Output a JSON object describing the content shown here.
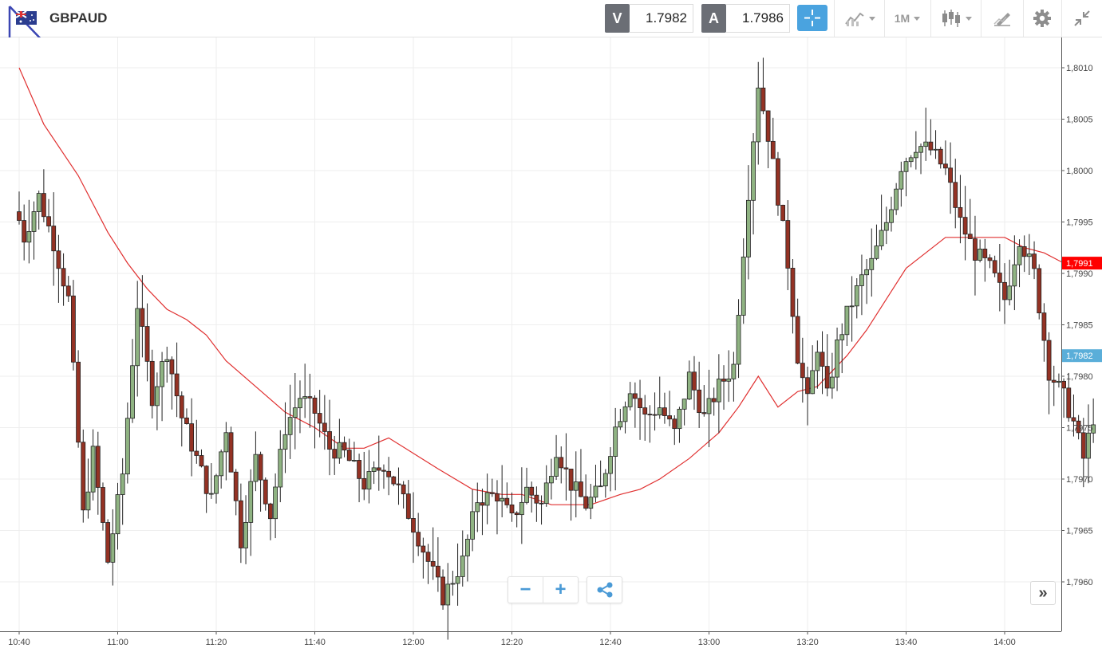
{
  "header": {
    "symbol": "GBPAUD",
    "sell_tag": "V",
    "sell_price": "1.7982",
    "buy_tag": "A",
    "buy_price": "1.7986",
    "timeframe": "1M"
  },
  "colors": {
    "accent": "#4aa3df",
    "candle_up": "#8fb382",
    "candle_down": "#943224",
    "moving_average": "#e03030",
    "ma_badge": "#ff0000",
    "price_badge": "#5aaed9"
  },
  "icons": [
    "logo-icon",
    "flag-icon",
    "crosshair-icon",
    "indicators-icon",
    "candlestick-icon",
    "draw-icon",
    "gear-icon",
    "collapse-icon",
    "zoom-out-icon",
    "zoom-in-icon",
    "share-icon",
    "scroll-forward-icon"
  ],
  "chart_data": {
    "type": "candlestick",
    "ylim": [
      1.7955,
      1.8013
    ],
    "y_ticks": [
      "1,8010",
      "1,8005",
      "1,8000",
      "1,7995",
      "1,7990",
      "1,7985",
      "1,7980",
      "1,7975",
      "1,7970",
      "1,7965",
      "1,7960"
    ],
    "y_tick_values": [
      1.801,
      1.8005,
      1.8,
      1.7995,
      1.799,
      1.7985,
      1.798,
      1.7975,
      1.797,
      1.7965,
      1.796
    ],
    "x_ticks": [
      "10:40",
      "11:00",
      "11:20",
      "11:40",
      "12:00",
      "12:20",
      "12:40",
      "13:00",
      "13:20",
      "13:40",
      "14:00"
    ],
    "x_tick_minutes": [
      640,
      660,
      680,
      700,
      720,
      740,
      760,
      780,
      800,
      820,
      840
    ],
    "ma_value_label": "1,7991",
    "ma_value": 1.7991,
    "price_label": "1,7982",
    "price_value": 1.7982,
    "grid": true,
    "anchor_points": [
      [
        639.5,
        1.7996
      ],
      [
        641,
        1.79935
      ],
      [
        644,
        1.79975
      ],
      [
        647,
        1.7993
      ],
      [
        650,
        1.79875
      ],
      [
        653,
        1.79665
      ],
      [
        655,
        1.79725
      ],
      [
        658,
        1.7962
      ],
      [
        661,
        1.79705
      ],
      [
        664,
        1.7987
      ],
      [
        667,
        1.7978
      ],
      [
        670,
        1.79825
      ],
      [
        673,
        1.7976
      ],
      [
        676,
        1.7972
      ],
      [
        679,
        1.7968
      ],
      [
        682,
        1.7975
      ],
      [
        685,
        1.7964
      ],
      [
        688,
        1.7972
      ],
      [
        691,
        1.79665
      ],
      [
        694,
        1.7975
      ],
      [
        697,
        1.7978
      ],
      [
        700,
        1.79765
      ],
      [
        703,
        1.7973
      ],
      [
        706,
        1.79725
      ],
      [
        710,
        1.79695
      ],
      [
        714,
        1.79715
      ],
      [
        717,
        1.7969
      ],
      [
        720,
        1.79655
      ],
      [
        723,
        1.7962
      ],
      [
        726,
        1.79585
      ],
      [
        730,
        1.7962
      ],
      [
        733,
        1.7968
      ],
      [
        737,
        1.79685
      ],
      [
        740,
        1.7966
      ],
      [
        743,
        1.7969
      ],
      [
        746,
        1.79675
      ],
      [
        749,
        1.7973
      ],
      [
        752,
        1.79695
      ],
      [
        755,
        1.79675
      ],
      [
        758,
        1.7969
      ],
      [
        761,
        1.7975
      ],
      [
        764,
        1.7979
      ],
      [
        767,
        1.7976
      ],
      [
        770,
        1.7977
      ],
      [
        773,
        1.79745
      ],
      [
        776,
        1.798
      ],
      [
        779,
        1.7976
      ],
      [
        782,
        1.7979
      ],
      [
        785,
        1.7981
      ],
      [
        788,
        1.7998
      ],
      [
        790,
        1.80085
      ],
      [
        792,
        1.80035
      ],
      [
        794,
        1.79975
      ],
      [
        796,
        1.7991
      ],
      [
        798,
        1.7982
      ],
      [
        800,
        1.79775
      ],
      [
        802,
        1.7983
      ],
      [
        804,
        1.7978
      ],
      [
        806,
        1.7983
      ],
      [
        808,
        1.7986
      ],
      [
        811,
        1.79895
      ],
      [
        813,
        1.7991
      ],
      [
        816,
        1.7995
      ],
      [
        819,
        1.80005
      ],
      [
        822,
        1.80025
      ],
      [
        825,
        1.8002
      ],
      [
        828,
        1.8
      ],
      [
        831,
        1.7995
      ],
      [
        834,
        1.7992
      ],
      [
        837,
        1.79905
      ],
      [
        840,
        1.79875
      ],
      [
        843,
        1.79935
      ],
      [
        846,
        1.799
      ],
      [
        849,
        1.79805
      ],
      [
        852,
        1.7978
      ],
      [
        854,
        1.79755
      ],
      [
        856,
        1.7972
      ],
      [
        858,
        1.7976
      ]
    ],
    "ma_points": [
      [
        640,
        1.801
      ],
      [
        645,
        1.80045
      ],
      [
        652,
        1.79995
      ],
      [
        658,
        1.7994
      ],
      [
        662,
        1.7991
      ],
      [
        666,
        1.79885
      ],
      [
        670,
        1.79865
      ],
      [
        674,
        1.79855
      ],
      [
        678,
        1.7984
      ],
      [
        682,
        1.79815
      ],
      [
        688,
        1.7979
      ],
      [
        694,
        1.79765
      ],
      [
        700,
        1.7975
      ],
      [
        706,
        1.7973
      ],
      [
        710,
        1.7973
      ],
      [
        715,
        1.7974
      ],
      [
        720,
        1.79725
      ],
      [
        725,
        1.7971
      ],
      [
        732,
        1.7969
      ],
      [
        738,
        1.79685
      ],
      [
        742,
        1.79685
      ],
      [
        748,
        1.79675
      ],
      [
        756,
        1.79675
      ],
      [
        762,
        1.79685
      ],
      [
        766,
        1.7969
      ],
      [
        770,
        1.797
      ],
      [
        776,
        1.7972
      ],
      [
        782,
        1.79745
      ],
      [
        786,
        1.7977
      ],
      [
        790,
        1.798
      ],
      [
        794,
        1.7977
      ],
      [
        798,
        1.79785
      ],
      [
        802,
        1.7979
      ],
      [
        808,
        1.7982
      ],
      [
        812,
        1.79845
      ],
      [
        816,
        1.79875
      ],
      [
        820,
        1.79905
      ],
      [
        824,
        1.7992
      ],
      [
        828,
        1.79935
      ],
      [
        832,
        1.79935
      ],
      [
        836,
        1.79935
      ],
      [
        840,
        1.79935
      ],
      [
        844,
        1.79925
      ],
      [
        848,
        1.7992
      ],
      [
        852,
        1.7991
      ],
      [
        856,
        1.79905
      ]
    ]
  }
}
